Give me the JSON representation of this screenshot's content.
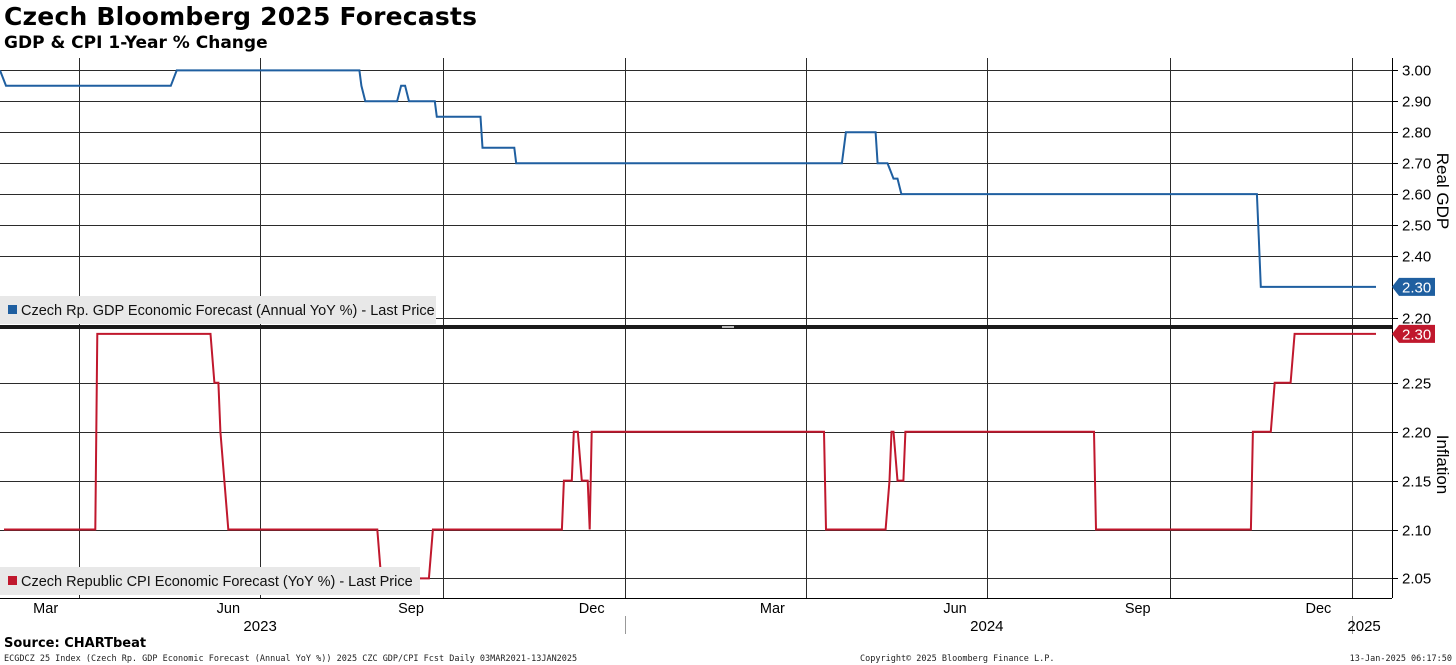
{
  "header": {
    "title": "Czech Bloomberg 2025 Forecasts",
    "subtitle": "GDP & CPI 1-Year % Change"
  },
  "footer": {
    "source": "Source: CHARTbeat",
    "left": "ECGDCZ 25 Index (Czech Rp. GDP Economic Forecast (Annual YoY %)) 2025 CZC GDP/CPI Fcst  Daily 03MAR2021-13JAN2025",
    "center": "Copyright© 2025 Bloomberg Finance L.P.",
    "right": "13-Jan-2025 06:17:50"
  },
  "colors": {
    "gdp": "#1f5fa0",
    "cpi": "#c0182d"
  },
  "chart_data": [
    {
      "type": "line",
      "ylabel": "Real GDP",
      "ylim": [
        2.18,
        3.04
      ],
      "yticks": [
        3.0,
        2.9,
        2.8,
        2.7,
        2.6,
        2.5,
        2.4,
        2.2
      ],
      "ytick_labels": [
        "3.00",
        "2.90",
        "2.80",
        "2.70",
        "2.60",
        "2.50",
        "2.40",
        "2.20"
      ],
      "last_value_label": "2.30",
      "legend": "Czech Rp. GDP Economic Forecast (Annual YoY %) - Last Price",
      "grid": true,
      "series": [
        {
          "name": "Czech Rp. GDP Economic Forecast (Annual YoY %) - Last Price",
          "x": [
            "2023-02-20",
            "2023-02-23",
            "2023-05-17",
            "2023-05-20",
            "2023-08-20",
            "2023-08-21",
            "2023-08-23",
            "2023-09-08",
            "2023-09-10",
            "2023-09-12",
            "2023-09-14",
            "2023-09-15",
            "2023-09-27",
            "2023-09-28",
            "2023-10-14",
            "2023-10-15",
            "2023-10-20",
            "2023-10-21",
            "2023-10-24",
            "2023-10-25",
            "2023-11-06",
            "2023-11-07",
            "2023-11-09",
            "2023-11-10",
            "2023-11-11",
            "2023-11-12",
            "2024-04-19",
            "2024-04-21",
            "2024-05-06",
            "2024-05-07",
            "2024-05-10",
            "2024-05-12",
            "2024-05-15",
            "2024-05-17",
            "2024-05-19",
            "2024-05-20",
            "2024-05-22",
            "2024-05-24",
            "2024-11-14",
            "2024-11-15",
            "2024-11-16",
            "2024-11-17",
            "2025-01-13"
          ],
          "y": [
            3.0,
            2.95,
            2.95,
            3.0,
            3.0,
            2.95,
            2.9,
            2.9,
            2.95,
            2.95,
            2.9,
            2.9,
            2.9,
            2.85,
            2.85,
            2.85,
            2.85,
            2.75,
            2.75,
            2.75,
            2.75,
            2.7,
            2.7,
            2.7,
            2.7,
            2.7,
            2.7,
            2.8,
            2.8,
            2.7,
            2.7,
            2.7,
            2.65,
            2.65,
            2.6,
            2.6,
            2.6,
            2.6,
            2.6,
            2.45,
            2.3,
            2.3,
            2.3
          ]
        }
      ]
    },
    {
      "type": "line",
      "ylabel": "Inflation",
      "ylim": [
        2.03,
        2.303
      ],
      "yticks": [
        2.25,
        2.2,
        2.15,
        2.1,
        2.05
      ],
      "ytick_labels": [
        "2.25",
        "2.20",
        "2.15",
        "2.10",
        "2.05"
      ],
      "last_value_label": "2.30",
      "legend": "Czech Republic CPI Economic Forecast (YoY %) - Last Price",
      "grid": true,
      "series": [
        {
          "name": "Czech Republic CPI Economic Forecast (YoY %) - Last Price",
          "x": [
            "2023-02-22",
            "2023-04-09",
            "2023-04-10",
            "2023-06-06",
            "2023-06-08",
            "2023-06-09",
            "2023-06-10",
            "2023-06-11",
            "2023-06-15",
            "2023-08-29",
            "2023-08-31",
            "2023-09-24",
            "2023-09-26",
            "2023-11-30",
            "2023-12-01",
            "2023-12-05",
            "2023-12-06",
            "2023-12-08",
            "2023-12-10",
            "2023-12-13",
            "2023-12-14",
            "2023-12-15",
            "2023-12-16",
            "2024-04-10",
            "2024-04-11",
            "2024-05-11",
            "2024-05-13",
            "2024-05-14",
            "2024-05-15",
            "2024-05-17",
            "2024-05-20",
            "2024-05-21",
            "2024-05-22",
            "2024-05-24",
            "2024-05-24",
            "2024-08-24",
            "2024-08-25",
            "2024-11-11",
            "2024-11-12",
            "2024-11-21",
            "2024-11-23",
            "2024-12-01",
            "2024-12-03",
            "2025-01-13"
          ],
          "y": [
            2.1,
            2.1,
            2.3,
            2.3,
            2.25,
            2.25,
            2.25,
            2.2,
            2.1,
            2.1,
            2.05,
            2.05,
            2.1,
            2.1,
            2.15,
            2.15,
            2.2,
            2.2,
            2.15,
            2.15,
            2.1,
            2.2,
            2.2,
            2.2,
            2.1,
            2.1,
            2.15,
            2.2,
            2.2,
            2.15,
            2.15,
            2.2,
            2.2,
            2.2,
            2.2,
            2.2,
            2.1,
            2.1,
            2.2,
            2.2,
            2.25,
            2.25,
            2.3,
            2.3
          ]
        }
      ]
    }
  ],
  "x_axis": {
    "months": [
      {
        "label": "Mar",
        "date": "2023-03-15"
      },
      {
        "label": "Jun",
        "date": "2023-06-15"
      },
      {
        "label": "Sep",
        "date": "2023-09-15"
      },
      {
        "label": "Dec",
        "date": "2023-12-15"
      },
      {
        "label": "Mar",
        "date": "2024-03-15"
      },
      {
        "label": "Jun",
        "date": "2024-06-15"
      },
      {
        "label": "Sep",
        "date": "2024-09-15"
      },
      {
        "label": "Dec",
        "date": "2024-12-15"
      }
    ],
    "gridlines": [
      "2023-04-01",
      "2023-07-01",
      "2023-10-01",
      "2024-01-01",
      "2024-04-01",
      "2024-07-01",
      "2024-10-01",
      "2025-01-01"
    ],
    "years": [
      {
        "label": "2023",
        "date": "2023-07-01"
      },
      {
        "label": "2024",
        "date": "2024-07-01"
      },
      {
        "label": "2025",
        "date": "2025-01-07"
      }
    ],
    "year_dividers": [
      "2024-01-01",
      "2025-01-01"
    ]
  }
}
